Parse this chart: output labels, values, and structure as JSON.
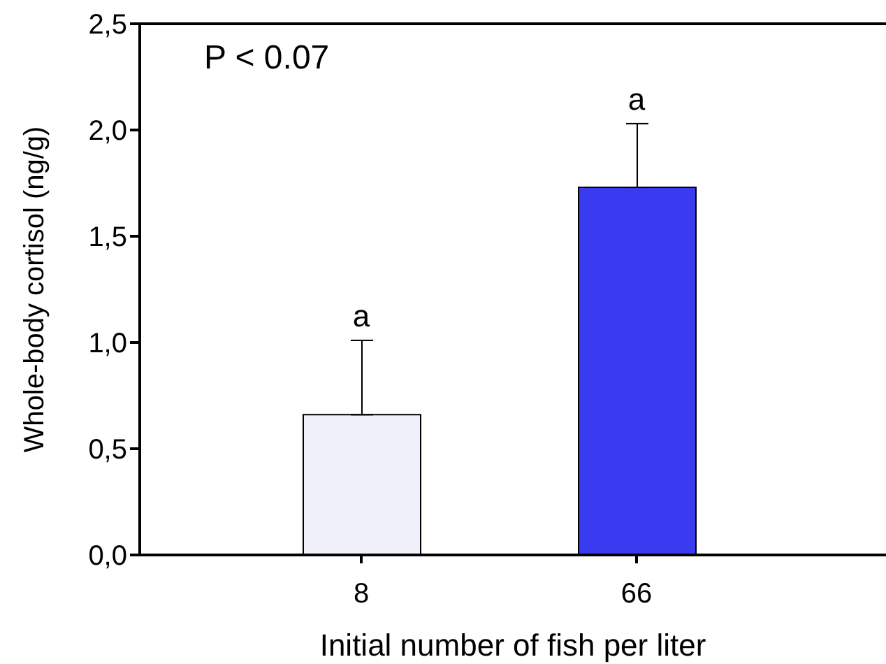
{
  "chart_data": {
    "type": "bar",
    "xlabel": "Initial number of fish per liter",
    "ylabel": "Whole-body cortisol (ng/g)",
    "categories": [
      "8",
      "66"
    ],
    "values": [
      0.66,
      1.73
    ],
    "colors": [
      "#f0f0fa",
      "#3a3af0"
    ],
    "errors": [
      [
        0.66,
        1.01
      ],
      [
        1.73,
        2.03
      ]
    ],
    "ylim": [
      0,
      2.5
    ],
    "yticks": [
      {
        "value": 0,
        "label": "0,0"
      },
      {
        "value": 0.5,
        "label": "0,5"
      },
      {
        "value": 1,
        "label": "1,0"
      },
      {
        "value": 1.5,
        "label": "1,5"
      },
      {
        "value": 2,
        "label": "2,0"
      },
      {
        "value": 2.5,
        "label": "2,5"
      }
    ],
    "annotations": [
      "P < 0.07",
      {
        "text": "a",
        "x": "8",
        "y": 1.01
      },
      {
        "text": "a",
        "x": "66",
        "y": 2.03
      }
    ]
  }
}
